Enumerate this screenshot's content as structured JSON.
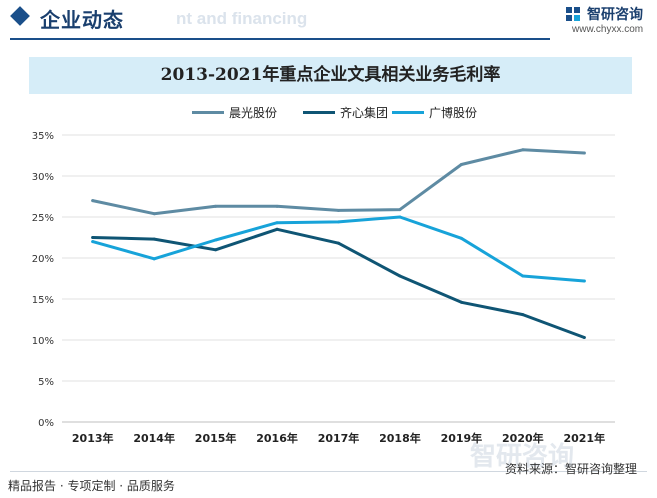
{
  "header": {
    "section_title": "企业动态",
    "watermark_text": "nt and financing",
    "brand": "智研咨询",
    "url": "www.chyxx.com"
  },
  "chart_data": {
    "type": "line",
    "title": "2013-2021年重点企业文具相关业务毛利率",
    "categories": [
      "2013年",
      "2014年",
      "2015年",
      "2016年",
      "2017年",
      "2018年",
      "2019年",
      "2020年",
      "2021年"
    ],
    "ylim": [
      0,
      35
    ],
    "yticks": [
      "0%",
      "5%",
      "10%",
      "15%",
      "20%",
      "25%",
      "30%",
      "35%"
    ],
    "y_unit": "%",
    "grid": true,
    "legend_position": "top",
    "series": [
      {
        "name": "晨光股份",
        "color": "#5e8ba3",
        "values": [
          27.0,
          25.4,
          26.3,
          26.3,
          25.8,
          25.9,
          31.4,
          33.2,
          32.8
        ]
      },
      {
        "name": "齐心集团",
        "color": "#0f5574",
        "values": [
          22.5,
          22.3,
          21.0,
          23.5,
          21.8,
          17.8,
          14.6,
          13.1,
          10.3
        ]
      },
      {
        "name": "广博股份",
        "color": "#17a3d9",
        "values": [
          22.0,
          19.9,
          22.2,
          24.3,
          24.4,
          25.0,
          22.4,
          17.8,
          17.2
        ]
      }
    ]
  },
  "footer": {
    "left": "精品报告 · 专项定制 · 品质服务",
    "source": "资料来源：智研咨询整理",
    "watermark": "智研咨询"
  }
}
